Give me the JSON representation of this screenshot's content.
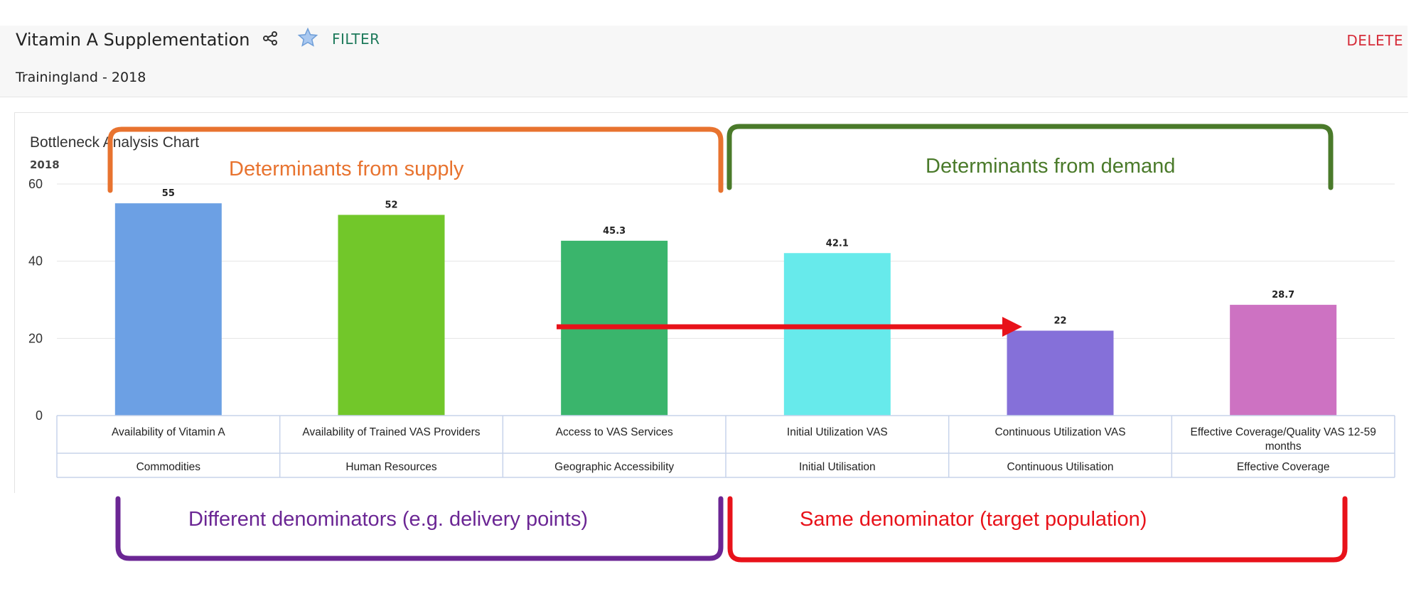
{
  "header": {
    "title": "Vitamin A Supplementation",
    "filter_label": "FILTER",
    "delete_label": "DELETE",
    "subtitle": "Trainingland - 2018"
  },
  "chart_data": {
    "type": "bar",
    "title": "Bottleneck Analysis Chart",
    "series_label": "2018",
    "ylim": [
      0,
      60
    ],
    "yticks": [
      0,
      20,
      40,
      60
    ],
    "grid": true,
    "categories": [
      "Availability of Vitamin A",
      "Availability of Trained VAS Providers",
      "Access to VAS Services",
      "Initial Utilization VAS",
      "Continuous Utilization VAS",
      "Effective Coverage/Quality VAS 12-59 months"
    ],
    "groups": [
      "Commodities",
      "Human Resources",
      "Geographic Accessibility",
      "Initial Utilisation",
      "Continuous Utilisation",
      "Effective Coverage"
    ],
    "values": [
      55,
      52,
      45.3,
      42.1,
      22,
      28.7
    ],
    "value_labels": [
      "55",
      "52",
      "45.3",
      "42.1",
      "22",
      "28.7"
    ],
    "colors": [
      "#6ca0e4",
      "#72c72a",
      "#3ab56c",
      "#67eaeb",
      "#8570d9",
      "#cd72c2"
    ]
  },
  "annotations": {
    "supply": {
      "text": "Determinants from supply",
      "color": "#e8732f"
    },
    "demand": {
      "text": "Determinants from demand",
      "color": "#4a7a2a"
    },
    "different_denominators": {
      "text": "Different denominators (e.g. delivery points)",
      "color": "#6b2694"
    },
    "same_denominator": {
      "text": "Same denominator (target population)",
      "color": "#e8121a"
    },
    "arrow_color": "#e8121a"
  }
}
